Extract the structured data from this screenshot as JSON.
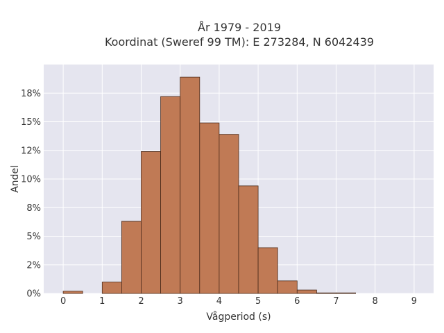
{
  "chart_data": {
    "type": "bar",
    "title": "År 1979 - 2019",
    "subtitle": "Koordinat (Sweref 99 TM): E 273284, N 6042439",
    "xlabel": "Vågperiod (s)",
    "ylabel": "Andel",
    "xlim": [
      -0.5,
      9.5
    ],
    "ylim": [
      0,
      20
    ],
    "x_ticks": [
      0,
      1,
      2,
      3,
      4,
      5,
      6,
      7,
      8,
      9
    ],
    "y_ticks": [
      0,
      2.5,
      5,
      7.5,
      10,
      12.5,
      15,
      17.5
    ],
    "y_tick_labels": [
      "0%",
      "2%",
      "5%",
      "8%",
      "10%",
      "12%",
      "15%",
      "18%"
    ],
    "bin_width": 0.5,
    "bins": [
      {
        "x0": 0.0,
        "x1": 0.5,
        "value": 0.2
      },
      {
        "x0": 0.5,
        "x1": 1.0,
        "value": 0.0
      },
      {
        "x0": 1.0,
        "x1": 1.5,
        "value": 1.0
      },
      {
        "x0": 1.5,
        "x1": 2.0,
        "value": 6.3
      },
      {
        "x0": 2.0,
        "x1": 2.5,
        "value": 12.4
      },
      {
        "x0": 2.5,
        "x1": 3.0,
        "value": 17.2
      },
      {
        "x0": 3.0,
        "x1": 3.5,
        "value": 18.9
      },
      {
        "x0": 3.5,
        "x1": 4.0,
        "value": 14.9
      },
      {
        "x0": 4.0,
        "x1": 4.5,
        "value": 13.9
      },
      {
        "x0": 4.5,
        "x1": 5.0,
        "value": 9.4
      },
      {
        "x0": 5.0,
        "x1": 5.5,
        "value": 4.0
      },
      {
        "x0": 5.5,
        "x1": 6.0,
        "value": 1.1
      },
      {
        "x0": 6.0,
        "x1": 6.5,
        "value": 0.3
      },
      {
        "x0": 6.5,
        "x1": 7.0,
        "value": 0.05
      },
      {
        "x0": 7.0,
        "x1": 7.5,
        "value": 0.05
      }
    ],
    "grid": true,
    "colors": {
      "bar_fill": "#c07a55",
      "bar_edge": "#4a2a1a",
      "plot_background": "#e5e5ef",
      "grid": "#ffffff"
    }
  }
}
